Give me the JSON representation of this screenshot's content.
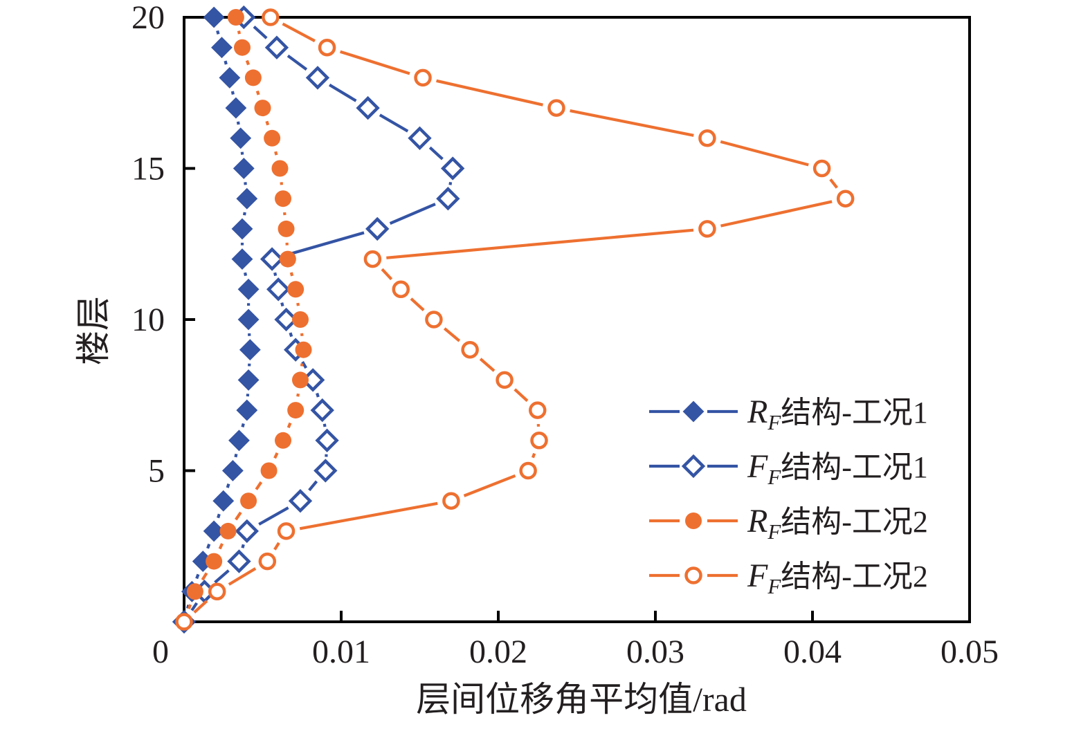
{
  "figure": {
    "background": "#ffffff"
  },
  "chart_data": {
    "type": "line",
    "title": "",
    "xlabel": "层间位移角平均值/rad",
    "ylabel": "楼层",
    "xlim": [
      0,
      0.05
    ],
    "ylim": [
      0,
      20
    ],
    "x_ticks": [
      0,
      0.01,
      0.02,
      0.03,
      0.04,
      0.05
    ],
    "x_tick_labels": [
      "0",
      "0.01",
      "0.02",
      "0.03",
      "0.04",
      "0.05"
    ],
    "y_ticks": [
      5,
      10,
      15,
      20
    ],
    "y_tick_labels": [
      "5",
      "10",
      "15",
      "20"
    ],
    "grid": false,
    "legend_position": "inside-right-lower",
    "floors": [
      0,
      1,
      2,
      3,
      4,
      5,
      6,
      7,
      8,
      9,
      10,
      11,
      12,
      13,
      14,
      15,
      16,
      17,
      18,
      19,
      20
    ],
    "series": [
      {
        "name": "RF结构-工况1",
        "legend": {
          "letter": "R",
          "sub": "F",
          "text": "结构-工况1"
        },
        "color": "#3454a4",
        "marker": "diamond",
        "fill": "filled",
        "values": [
          0.0,
          0.0005,
          0.0012,
          0.0019,
          0.0025,
          0.0031,
          0.0035,
          0.004,
          0.0041,
          0.0042,
          0.0041,
          0.0041,
          0.0037,
          0.0037,
          0.004,
          0.0038,
          0.0036,
          0.0033,
          0.0029,
          0.0024,
          0.0019
        ]
      },
      {
        "name": "FF结构-工况1",
        "legend": {
          "letter": "F",
          "sub": "F",
          "text": "结构-工况1"
        },
        "color": "#3454a4",
        "marker": "diamond",
        "fill": "open",
        "values": [
          0.0,
          0.0013,
          0.0035,
          0.004,
          0.0074,
          0.009,
          0.0091,
          0.0088,
          0.0082,
          0.0071,
          0.0065,
          0.006,
          0.0056,
          0.0123,
          0.0168,
          0.0171,
          0.015,
          0.0117,
          0.0085,
          0.0059,
          0.0038
        ]
      },
      {
        "name": "RF结构-工况2",
        "legend": {
          "letter": "R",
          "sub": "F",
          "text": "结构-工况2"
        },
        "color": "#ee7030",
        "marker": "circle",
        "fill": "filled",
        "values": [
          0.0,
          0.0007,
          0.0019,
          0.0028,
          0.0041,
          0.0054,
          0.0063,
          0.0071,
          0.0074,
          0.0076,
          0.0074,
          0.0071,
          0.0066,
          0.0065,
          0.0063,
          0.0061,
          0.0056,
          0.005,
          0.0044,
          0.0037,
          0.0033
        ]
      },
      {
        "name": "FF结构-工况2",
        "legend": {
          "letter": "F",
          "sub": "F",
          "text": "结构-工况2"
        },
        "color": "#ee7030",
        "marker": "circle",
        "fill": "open",
        "values": [
          0.0,
          0.0021,
          0.0053,
          0.0065,
          0.017,
          0.0219,
          0.0226,
          0.0225,
          0.0204,
          0.0182,
          0.0159,
          0.0138,
          0.012,
          0.0333,
          0.0421,
          0.0406,
          0.0333,
          0.0237,
          0.0152,
          0.0091,
          0.0055
        ]
      }
    ],
    "colors": {
      "blue": "#3454a4",
      "orange": "#ee7030",
      "axis": "#000000",
      "text": "#231f20"
    }
  }
}
